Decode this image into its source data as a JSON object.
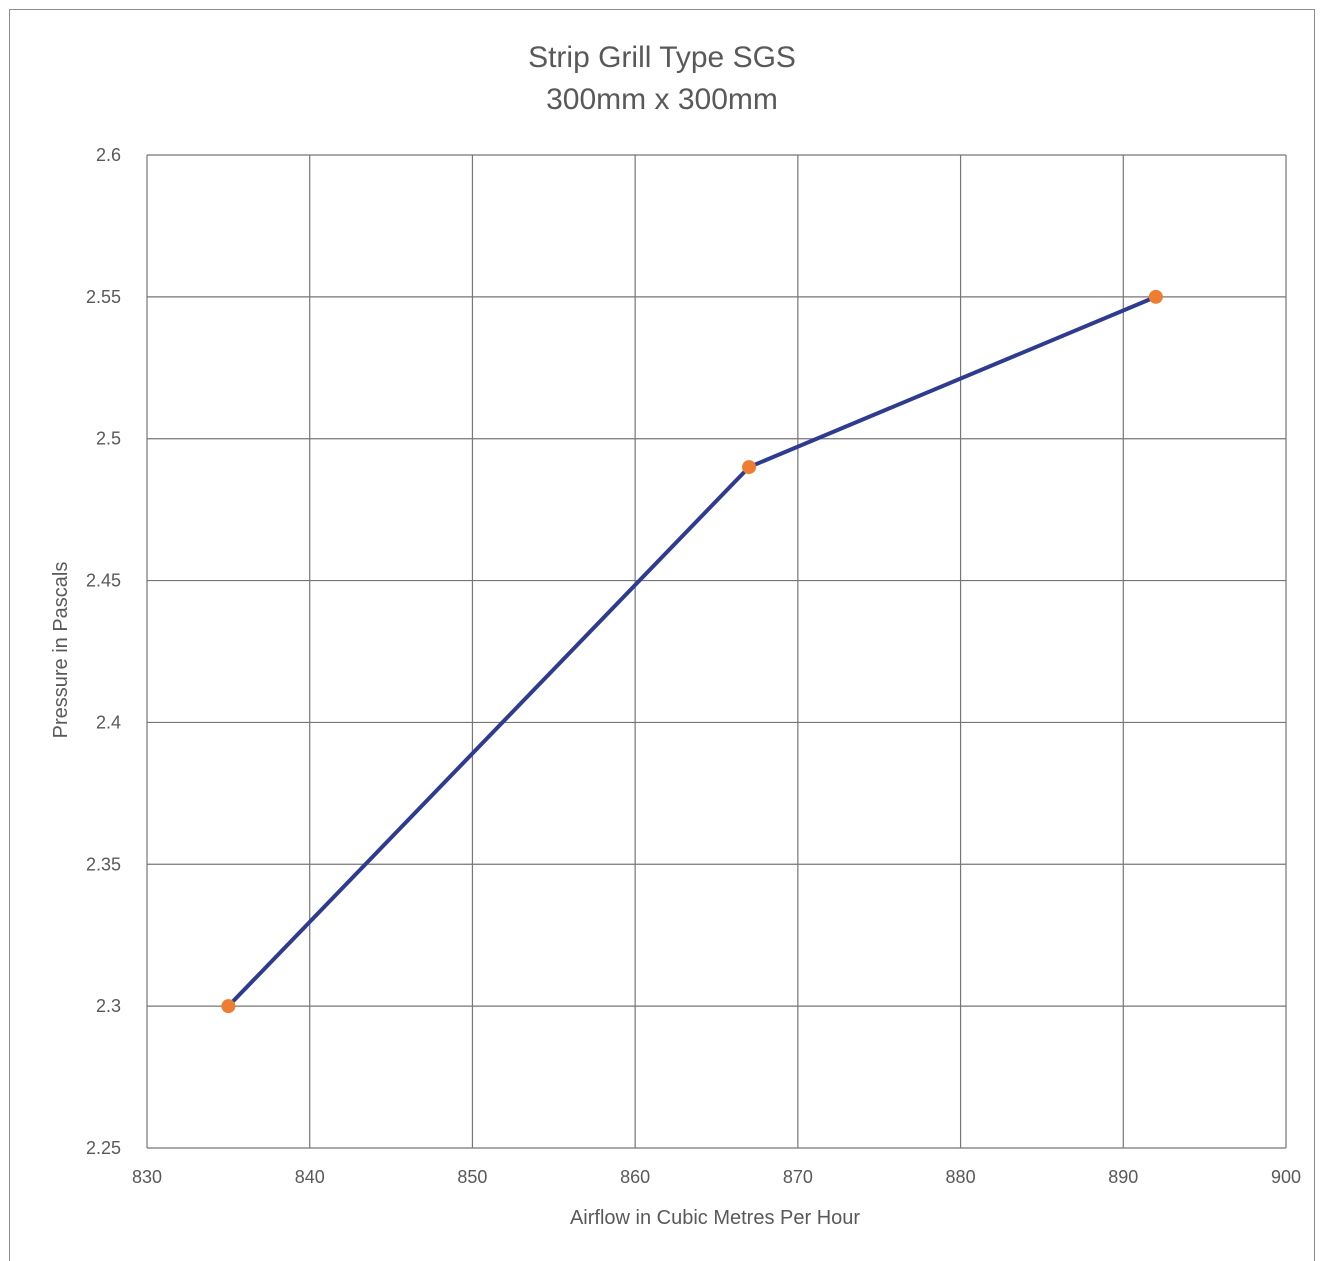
{
  "chart_data": {
    "type": "line",
    "title": "Strip Grill Type SGS",
    "subtitle": "300mm x 300mm",
    "xlabel": "Airflow in Cubic Metres Per Hour",
    "ylabel": "Pressure in Pascals",
    "xlim": [
      830,
      900
    ],
    "ylim": [
      2.25,
      2.6
    ],
    "x_ticks": [
      "830",
      "840",
      "850",
      "860",
      "870",
      "880",
      "890",
      "900"
    ],
    "y_ticks": [
      "2.25",
      "2.3",
      "2.35",
      "2.4",
      "2.45",
      "2.5",
      "2.55",
      "2.6"
    ],
    "grid": true,
    "series": [
      {
        "x": [
          835,
          867,
          892
        ],
        "y": [
          2.3,
          2.49,
          2.55
        ],
        "line_color": "#2E3B8F",
        "marker_color": "#ED7D31"
      }
    ]
  }
}
